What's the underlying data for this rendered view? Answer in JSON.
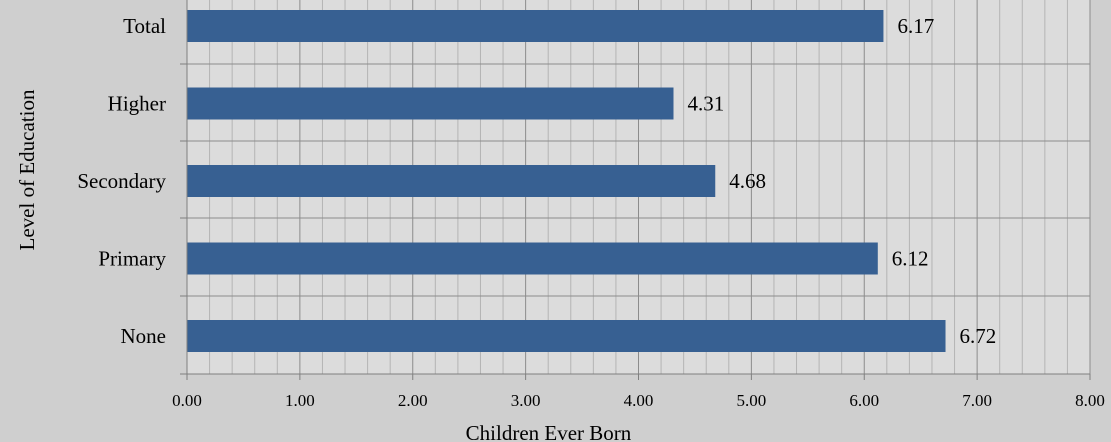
{
  "chart_data": {
    "type": "bar",
    "orientation": "horizontal",
    "categories": [
      "Total",
      "Higher",
      "Secondary",
      "Primary",
      "None"
    ],
    "values": [
      6.17,
      4.31,
      4.68,
      6.12,
      6.72
    ],
    "data_labels": [
      "6.17",
      "4.31",
      "4.68",
      "6.12",
      "6.72"
    ],
    "xlabel": "Children Ever Born",
    "ylabel": "Level of Education",
    "xlim": [
      0,
      8
    ],
    "xticks": [
      "0.00",
      "1.00",
      "2.00",
      "3.00",
      "4.00",
      "5.00",
      "6.00",
      "7.00",
      "8.00"
    ],
    "grid": true,
    "colors": {
      "bar": "#376092",
      "plot_background": "#dcdcdc",
      "page_background": "#cfcfcf",
      "grid_major": "#8c8c8c",
      "grid_minor": "#b4b4b4"
    }
  }
}
